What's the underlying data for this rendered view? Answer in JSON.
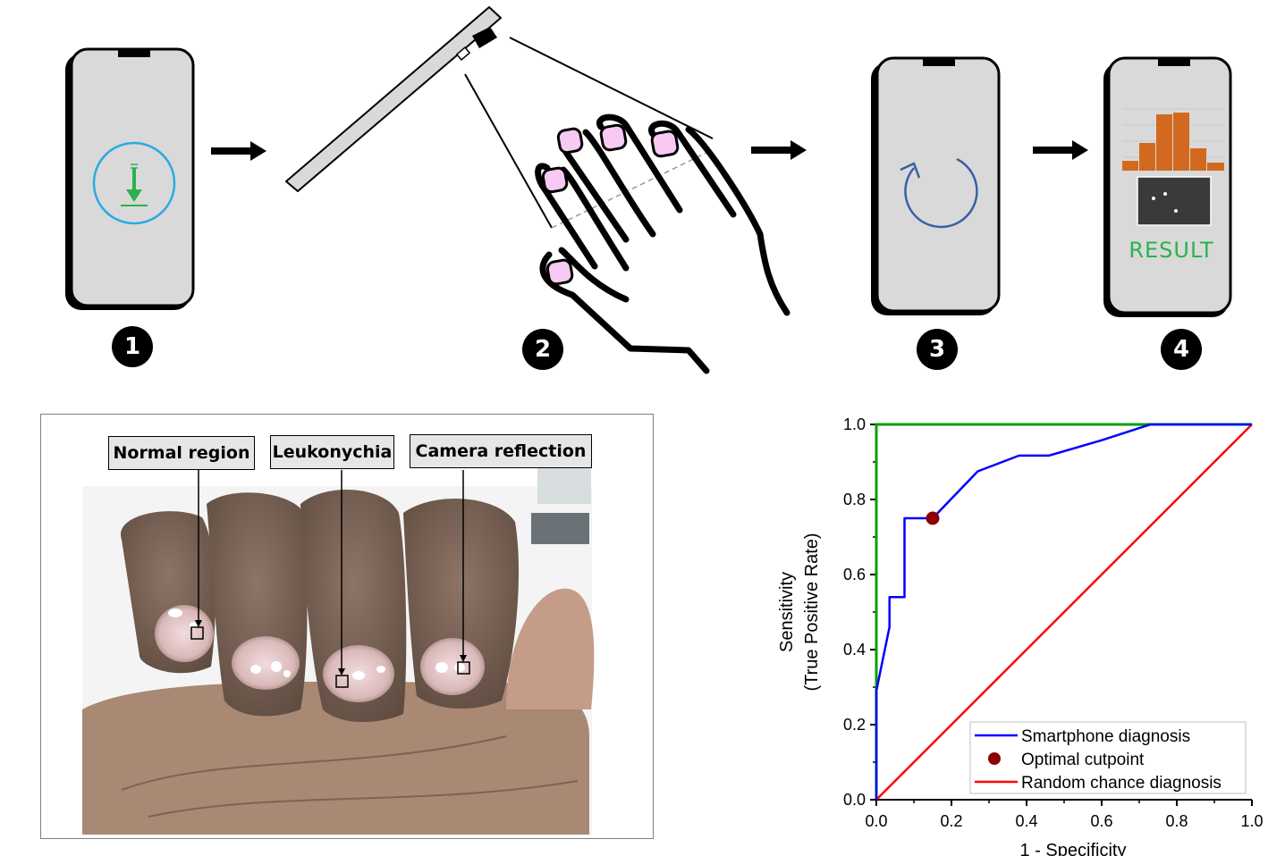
{
  "steps": [
    "1",
    "2",
    "3",
    "4"
  ],
  "result_label": "RESULT",
  "callouts": [
    "Normal region",
    "Leukonychia",
    "Camera reflection"
  ],
  "icons": {
    "download": "download-icon",
    "refresh": "refresh-icon",
    "histogram": "histogram-icon"
  },
  "colors": {
    "download_circle": "#29abe2",
    "download_arrow": "#2bb24c",
    "refresh": "#3a5fa8",
    "histogram": "#d2691e",
    "result_text": "#2bb24c",
    "roc_curve": "#0000ff",
    "random_line": "#ff0000",
    "perfect_line": "#00a000",
    "cutpoint": "#8b0000"
  },
  "chart_data": {
    "type": "line",
    "xlabel": "1 - Specificity",
    "ylabel_line1": "Sensitivity",
    "ylabel_line2": "(True Positive Rate)",
    "xlim": [
      0,
      1
    ],
    "ylim": [
      0,
      1
    ],
    "xticks": [
      "0.0",
      "0.2",
      "0.4",
      "0.6",
      "0.8",
      "1.0"
    ],
    "yticks": [
      "0.0",
      "0.2",
      "0.4",
      "0.6",
      "0.8",
      "1.0"
    ],
    "legend_position": "bottom-right",
    "series": [
      {
        "name": "Smartphone diagnosis",
        "x": [
          0,
          0,
          0.035,
          0.035,
          0.075,
          0.075,
          0.11,
          0.15,
          0.27,
          0.38,
          0.46,
          0.6,
          0.73,
          1.0
        ],
        "y": [
          0,
          0.29,
          0.46,
          0.54,
          0.54,
          0.75,
          0.75,
          0.75,
          0.875,
          0.917,
          0.917,
          0.958,
          1.0,
          1.0
        ]
      },
      {
        "name": "Optimal cutpoint",
        "x": [
          0.15
        ],
        "y": [
          0.75
        ]
      },
      {
        "name": "Random chance diagnosis",
        "x": [
          0,
          1
        ],
        "y": [
          0,
          1
        ]
      }
    ],
    "perfect_classifier": {
      "x": [
        0,
        0,
        1
      ],
      "y": [
        0,
        1,
        1
      ]
    }
  }
}
